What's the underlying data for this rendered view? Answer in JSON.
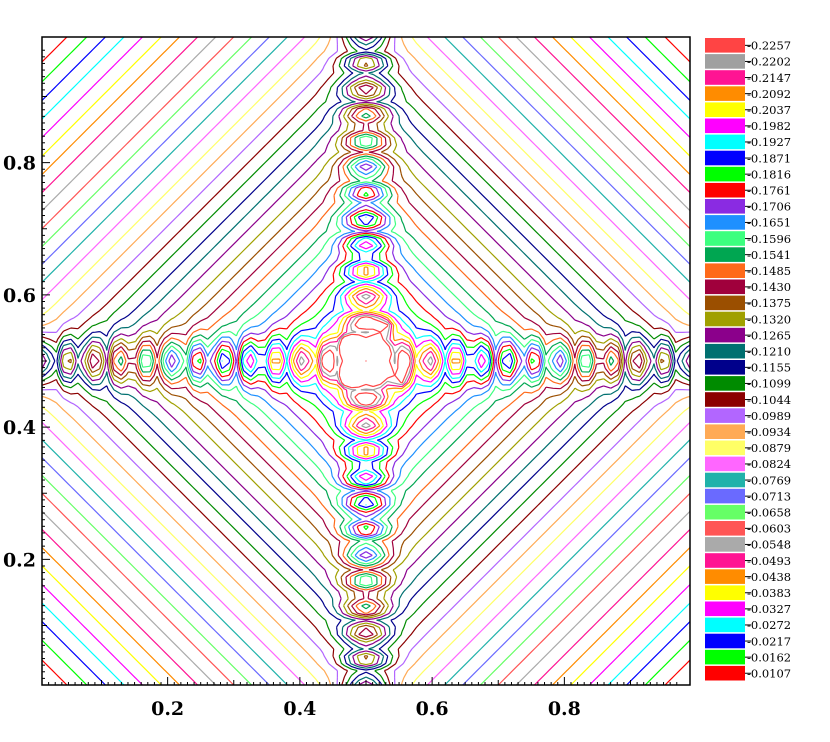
{
  "chart_data": {
    "type": "contour",
    "title": "",
    "xlabel": "",
    "ylabel": "",
    "xlim": [
      0.01,
      0.99
    ],
    "ylim": [
      0.01,
      0.99
    ],
    "x_ticks": [
      "0.2",
      "0.4",
      "0.6",
      "0.8"
    ],
    "y_ticks": [
      "0.2",
      "0.4",
      "0.6",
      "0.8"
    ],
    "grid": false,
    "legend_position": "right",
    "legend": {
      "levels": [
        "-0.2257",
        "-0.2202",
        "-0.2147",
        "-0.2092",
        "-0.2037",
        "-0.1982",
        "-0.1927",
        "-0.1871",
        "-0.1816",
        "-0.1761",
        "-0.1706",
        "-0.1651",
        "-0.1596",
        "-0.1541",
        "-0.1485",
        "-0.1430",
        "-0.1375",
        "-0.1320",
        "-0.1265",
        "-0.1210",
        "-0.1155",
        "-0.1099",
        "-0.1044",
        "-0.0989",
        "-0.0934",
        "-0.0879",
        "-0.0824",
        "-0.0769",
        "-0.0713",
        "-0.0658",
        "-0.0603",
        "-0.0548",
        "-0.0493",
        "-0.0438",
        "-0.0383",
        "-0.0327",
        "-0.0272",
        "-0.0217",
        "-0.0162",
        "-0.0107"
      ],
      "colors": [
        "#ff4444",
        "#a0a0a0",
        "#ff1493",
        "#ff8c00",
        "#ffff00",
        "#ff00ff",
        "#00ffff",
        "#0000ff",
        "#00ff00",
        "#ff0000",
        "#8a2be2",
        "#1e90ff",
        "#3cff7f",
        "#00a651",
        "#ff6a1a",
        "#a0003c",
        "#9b4f00",
        "#a0a000",
        "#8b008b",
        "#007070",
        "#00008b",
        "#008b00",
        "#8b0000",
        "#b266ff",
        "#ffaa55",
        "#ffff66",
        "#ff66ff",
        "#20b2aa",
        "#6a6aff",
        "#66ff66",
        "#ff5555",
        "#aaaaaa",
        "#ff1493",
        "#ff8c00",
        "#ffff00",
        "#ff00ff",
        "#00ffff",
        "#0000ff",
        "#00ff00",
        "#ff0000"
      ]
    }
  }
}
